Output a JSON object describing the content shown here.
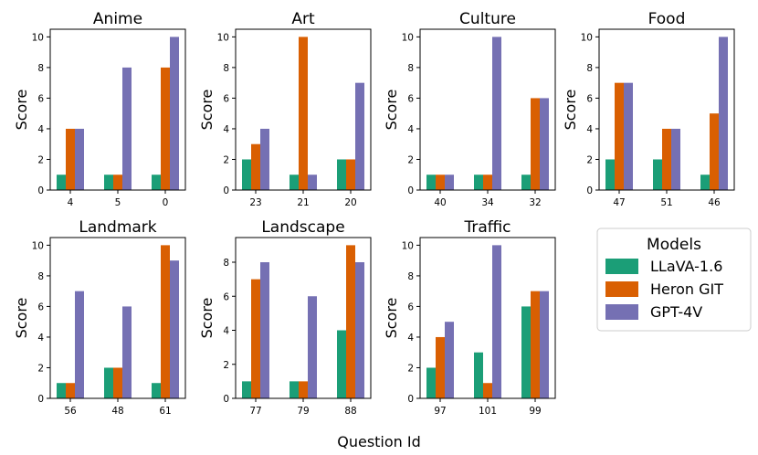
{
  "figure": {
    "xlabel": "Question Id",
    "legend_title": "Models"
  },
  "colors": {
    "LLaVA-1.6": "#1b9e77",
    "Heron GIT": "#d95f02",
    "GPT-4V": "#7570b3"
  },
  "chart_data": [
    {
      "type": "bar",
      "title": "Anime",
      "ylabel": "Score",
      "xlabel": "",
      "categories": [
        "4",
        "5",
        "0"
      ],
      "ylim": [
        0,
        10.5
      ],
      "yticks": [
        0,
        2,
        4,
        6,
        8,
        10
      ],
      "series": [
        {
          "name": "LLaVA-1.6",
          "values": [
            1,
            1,
            1
          ]
        },
        {
          "name": "Heron GIT",
          "values": [
            4,
            1,
            8
          ]
        },
        {
          "name": "GPT-4V",
          "values": [
            4,
            8,
            10
          ]
        }
      ]
    },
    {
      "type": "bar",
      "title": "Art",
      "ylabel": "Score",
      "xlabel": "",
      "categories": [
        "23",
        "21",
        "20"
      ],
      "ylim": [
        0,
        10.5
      ],
      "yticks": [
        0,
        2,
        4,
        6,
        8,
        10
      ],
      "series": [
        {
          "name": "LLaVA-1.6",
          "values": [
            2,
            1,
            2
          ]
        },
        {
          "name": "Heron GIT",
          "values": [
            3,
            10,
            2
          ]
        },
        {
          "name": "GPT-4V",
          "values": [
            4,
            1,
            7
          ]
        }
      ]
    },
    {
      "type": "bar",
      "title": "Culture",
      "ylabel": "Score",
      "xlabel": "",
      "categories": [
        "40",
        "34",
        "32"
      ],
      "ylim": [
        0,
        10.5
      ],
      "yticks": [
        0,
        2,
        4,
        6,
        8,
        10
      ],
      "series": [
        {
          "name": "LLaVA-1.6",
          "values": [
            1,
            1,
            1
          ]
        },
        {
          "name": "Heron GIT",
          "values": [
            1,
            1,
            6
          ]
        },
        {
          "name": "GPT-4V",
          "values": [
            1,
            10,
            6
          ]
        }
      ]
    },
    {
      "type": "bar",
      "title": "Food",
      "ylabel": "Score",
      "xlabel": "",
      "categories": [
        "47",
        "51",
        "46"
      ],
      "ylim": [
        0,
        10.5
      ],
      "yticks": [
        0,
        2,
        4,
        6,
        8,
        10
      ],
      "series": [
        {
          "name": "LLaVA-1.6",
          "values": [
            2,
            2,
            1
          ]
        },
        {
          "name": "Heron GIT",
          "values": [
            7,
            4,
            5
          ]
        },
        {
          "name": "GPT-4V",
          "values": [
            7,
            4,
            10
          ]
        }
      ]
    },
    {
      "type": "bar",
      "title": "Landmark",
      "ylabel": "Score",
      "xlabel": "",
      "categories": [
        "56",
        "48",
        "61"
      ],
      "ylim": [
        0,
        10.5
      ],
      "yticks": [
        0,
        2,
        4,
        6,
        8,
        10
      ],
      "series": [
        {
          "name": "LLaVA-1.6",
          "values": [
            1,
            2,
            1
          ]
        },
        {
          "name": "Heron GIT",
          "values": [
            1,
            2,
            10
          ]
        },
        {
          "name": "GPT-4V",
          "values": [
            7,
            6,
            9
          ]
        }
      ]
    },
    {
      "type": "bar",
      "title": "Landscape",
      "ylabel": "Score",
      "xlabel": "",
      "categories": [
        "77",
        "79",
        "88"
      ],
      "ylim": [
        0,
        9.45
      ],
      "yticks": [
        0,
        2,
        4,
        6,
        8
      ],
      "series": [
        {
          "name": "LLaVA-1.6",
          "values": [
            1,
            1,
            4
          ]
        },
        {
          "name": "Heron GIT",
          "values": [
            7,
            1,
            9
          ]
        },
        {
          "name": "GPT-4V",
          "values": [
            8,
            6,
            8
          ]
        }
      ]
    },
    {
      "type": "bar",
      "title": "Traffic",
      "ylabel": "Score",
      "xlabel": "",
      "categories": [
        "97",
        "101",
        "99"
      ],
      "ylim": [
        0,
        10.5
      ],
      "yticks": [
        0,
        2,
        4,
        6,
        8,
        10
      ],
      "series": [
        {
          "name": "LLaVA-1.6",
          "values": [
            2,
            3,
            6
          ]
        },
        {
          "name": "Heron GIT",
          "values": [
            4,
            1,
            7
          ]
        },
        {
          "name": "GPT-4V",
          "values": [
            5,
            10,
            7
          ]
        }
      ]
    }
  ]
}
